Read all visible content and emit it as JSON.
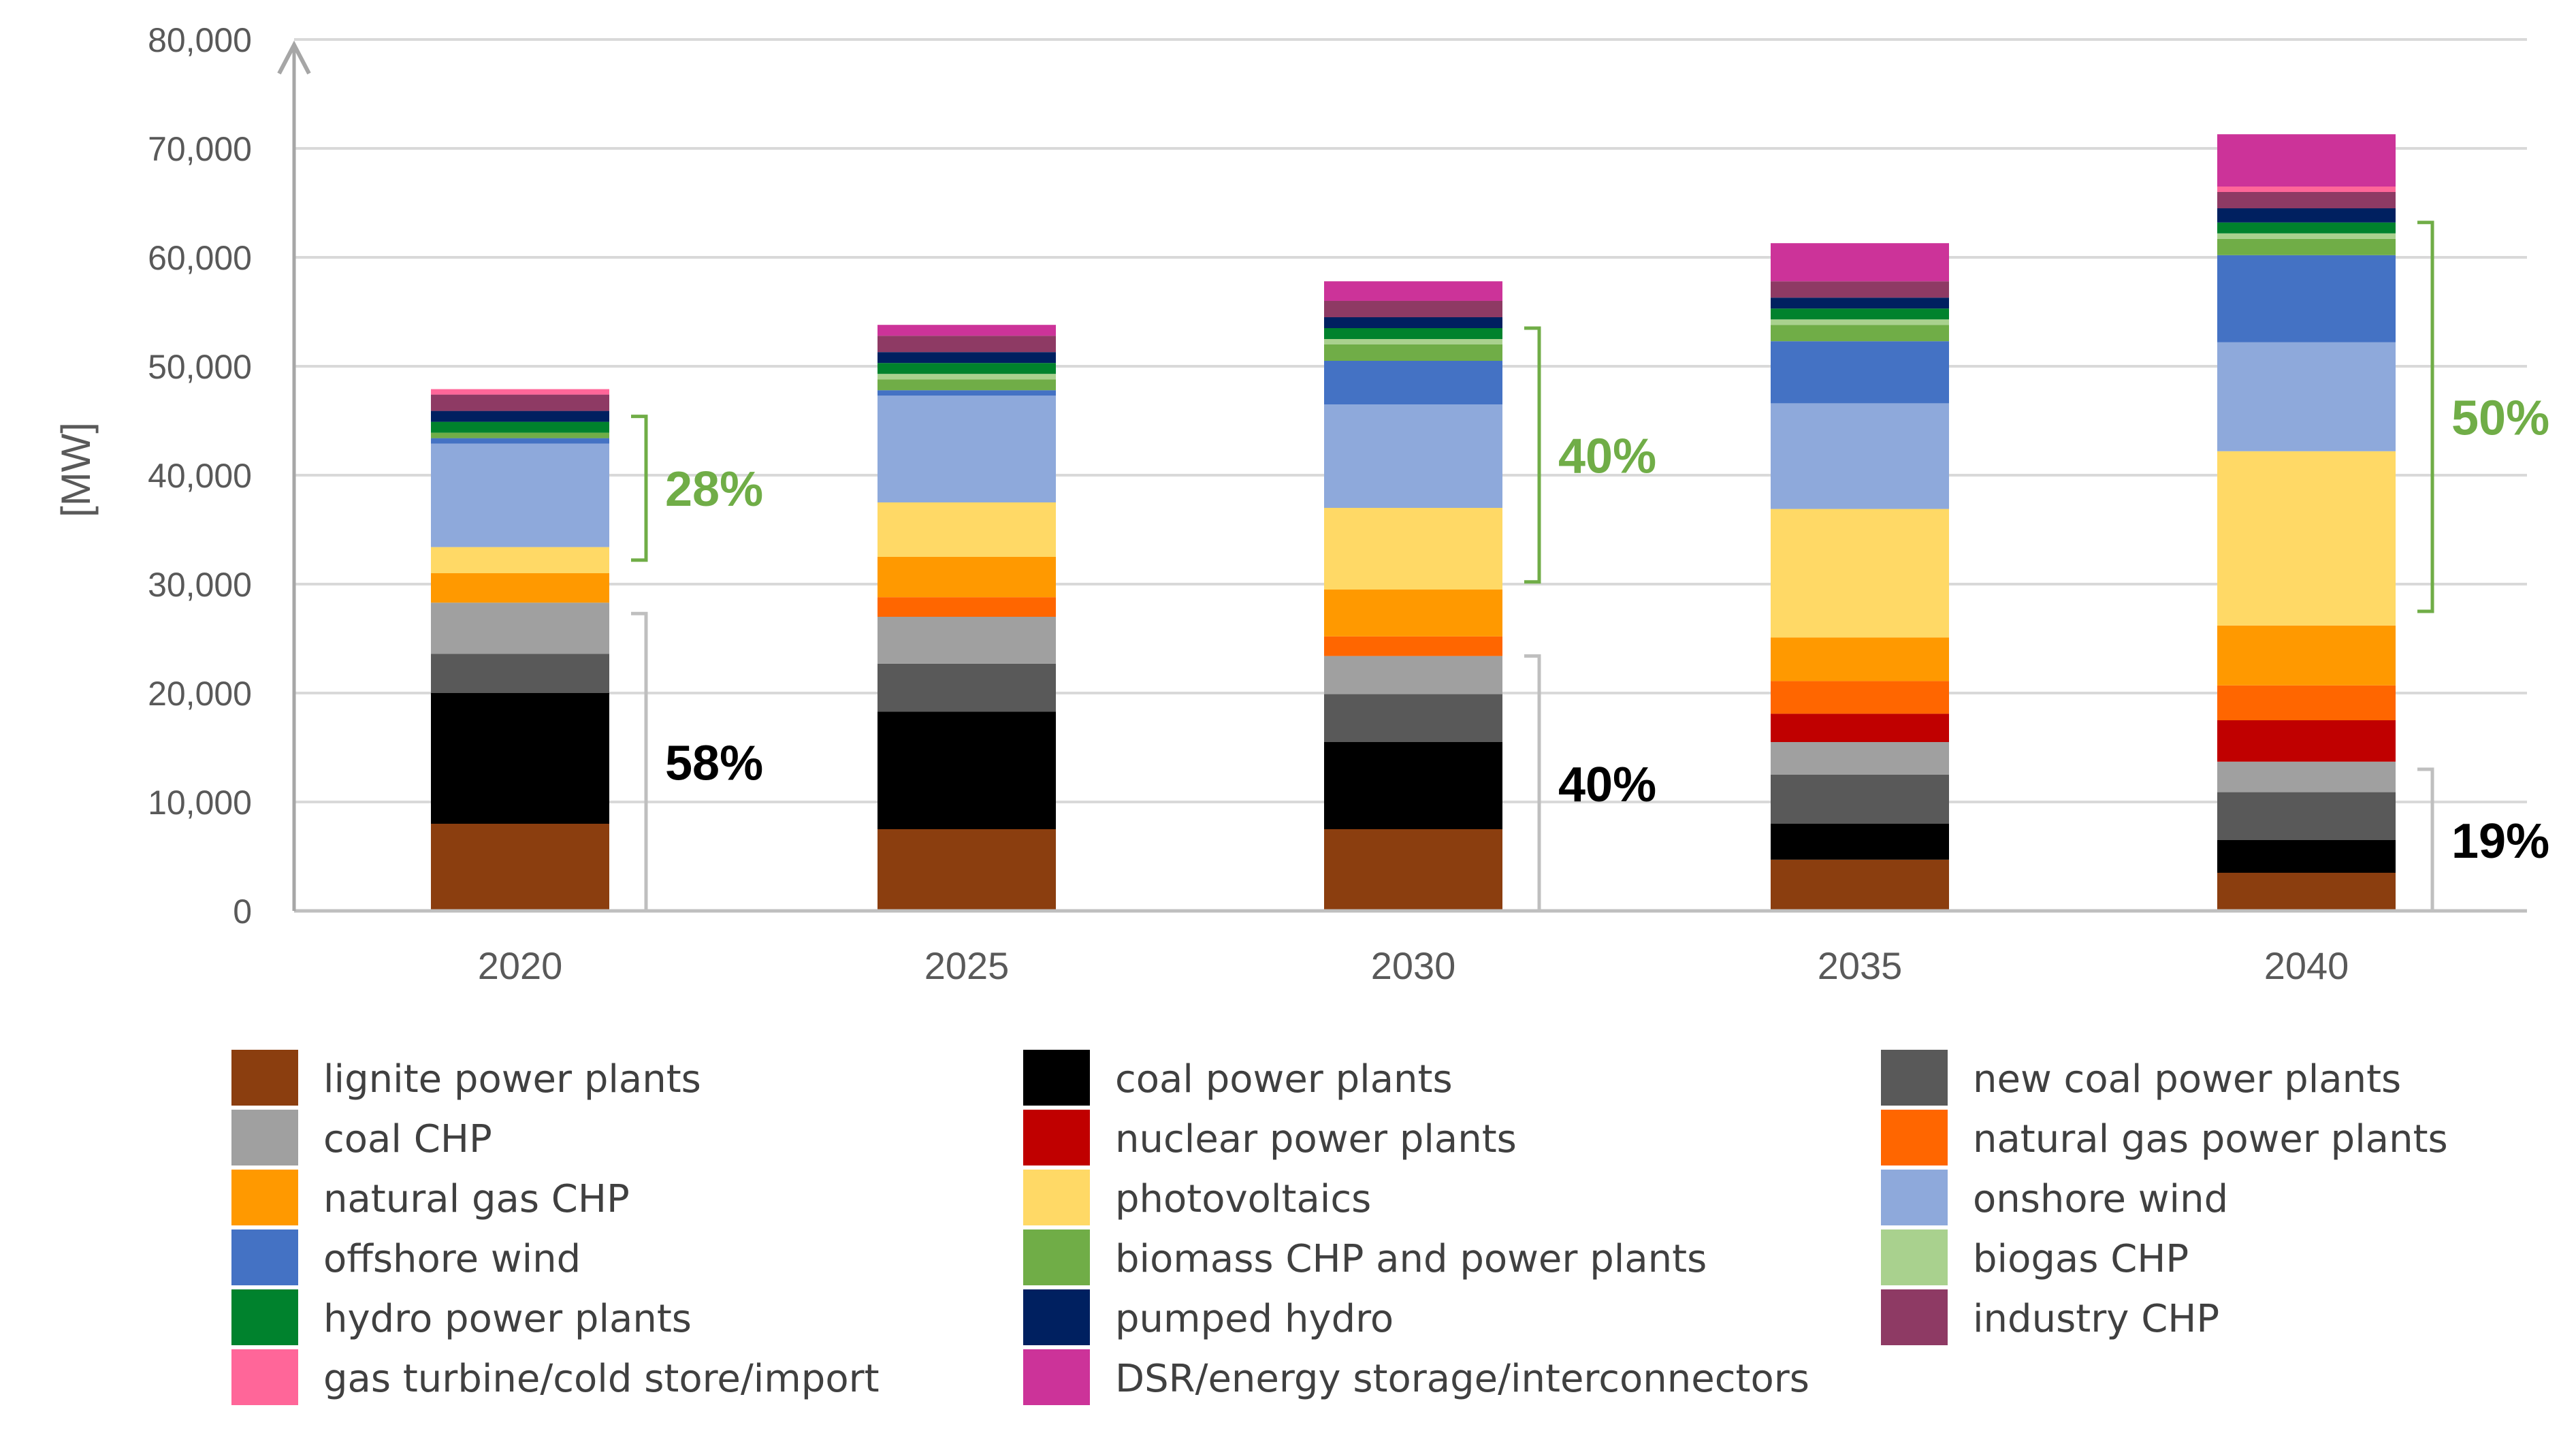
{
  "chart_data": {
    "type": "bar",
    "stacked": true,
    "title": "",
    "xlabel": "",
    "ylabel": "[MW]",
    "ylim": [
      0,
      80000
    ],
    "yticks": [
      {
        "value": 0,
        "label": "0"
      },
      {
        "value": 10000,
        "label": "10,000"
      },
      {
        "value": 20000,
        "label": "20,000"
      },
      {
        "value": 30000,
        "label": "30,000"
      },
      {
        "value": 40000,
        "label": "40,000"
      },
      {
        "value": 50000,
        "label": "50,000"
      },
      {
        "value": 60000,
        "label": "60,000"
      },
      {
        "value": 70000,
        "label": "70,000"
      },
      {
        "value": 80000,
        "label": "80,000"
      }
    ],
    "grid": true,
    "legend_position": "bottom",
    "categories": [
      "2020",
      "2025",
      "2030",
      "2035",
      "2040"
    ],
    "series": [
      {
        "name": "lignite power plants",
        "color": "#8B3E0F",
        "values": [
          8000,
          7500,
          7500,
          4700,
          3500
        ]
      },
      {
        "name": "coal power plants",
        "color": "#000000",
        "values": [
          12000,
          10800,
          8000,
          3300,
          3000
        ]
      },
      {
        "name": "new coal power plants",
        "color": "#595959",
        "values": [
          3600,
          4400,
          4400,
          4500,
          4400
        ]
      },
      {
        "name": "coal CHP",
        "color": "#A0A0A0",
        "values": [
          4700,
          4300,
          3500,
          3000,
          2800
        ]
      },
      {
        "name": "nuclear power plants",
        "color": "#C00000",
        "values": [
          0,
          0,
          0,
          2600,
          3800
        ]
      },
      {
        "name": "natural gas power plants",
        "color": "#FF6600",
        "values": [
          0,
          1800,
          1800,
          3000,
          3200
        ]
      },
      {
        "name": "natural gas CHP",
        "color": "#FF9900",
        "values": [
          2700,
          3700,
          4300,
          4000,
          5500
        ]
      },
      {
        "name": "photovoltaics",
        "color": "#FFD966",
        "values": [
          2400,
          5000,
          7500,
          11800,
          16000
        ]
      },
      {
        "name": "onshore wind",
        "color": "#8EA9DB",
        "values": [
          9500,
          9800,
          9500,
          9700,
          10000
        ]
      },
      {
        "name": "offshore wind",
        "color": "#4472C4",
        "values": [
          500,
          500,
          4000,
          5700,
          8000
        ]
      },
      {
        "name": "biomass CHP and power plants",
        "color": "#70AD47",
        "values": [
          500,
          1000,
          1500,
          1500,
          1500
        ]
      },
      {
        "name": "biogas CHP",
        "color": "#A9D18E",
        "values": [
          0,
          500,
          500,
          500,
          500
        ]
      },
      {
        "name": "hydro power plants",
        "color": "#00822D",
        "values": [
          1000,
          1000,
          1000,
          1000,
          1000
        ]
      },
      {
        "name": "pumped hydro",
        "color": "#002060",
        "values": [
          1000,
          1000,
          1000,
          1000,
          1300
        ]
      },
      {
        "name": "industry CHP",
        "color": "#8E3A64",
        "values": [
          1500,
          1500,
          1500,
          1500,
          1500
        ]
      },
      {
        "name": "gas turbine/cold store/import",
        "color": "#FF6699",
        "values": [
          500,
          0,
          0,
          0,
          500
        ]
      },
      {
        "name": "DSR/energy storage/interconnectors",
        "color": "#CC3399",
        "values": [
          0,
          1000,
          1800,
          3500,
          4800
        ]
      }
    ],
    "annotations": [
      {
        "text": "58%",
        "category": "2020",
        "from": 0,
        "to": 27300,
        "color": "#000000"
      },
      {
        "text": "28%",
        "category": "2020",
        "from": 32200,
        "to": 45400,
        "color": "#70AD47"
      },
      {
        "text": "40%",
        "category": "2030",
        "from": 0,
        "to": 23400,
        "color": "#000000"
      },
      {
        "text": "40%",
        "category": "2030",
        "from": 30200,
        "to": 53500,
        "color": "#70AD47"
      },
      {
        "text": "19%",
        "category": "2040",
        "from": 0,
        "to": 13000,
        "color": "#000000"
      },
      {
        "text": "50%",
        "category": "2040",
        "from": 27500,
        "to": 63200,
        "color": "#70AD47"
      }
    ],
    "legend": [
      {
        "label": "lignite power plants",
        "color": "#8B3E0F"
      },
      {
        "label": "coal power plants",
        "color": "#000000"
      },
      {
        "label": "new coal power plants",
        "color": "#595959"
      },
      {
        "label": "coal CHP",
        "color": "#A0A0A0"
      },
      {
        "label": "nuclear power plants",
        "color": "#C00000"
      },
      {
        "label": "natural gas power plants",
        "color": "#FF6600"
      },
      {
        "label": "natural gas CHP",
        "color": "#FF9900"
      },
      {
        "label": "photovoltaics",
        "color": "#FFD966"
      },
      {
        "label": "onshore wind",
        "color": "#8EA9DB"
      },
      {
        "label": "offshore wind",
        "color": "#4472C4"
      },
      {
        "label": "biomass CHP and power plants",
        "color": "#70AD47"
      },
      {
        "label": "biogas CHP",
        "color": "#A9D18E"
      },
      {
        "label": "hydro power plants",
        "color": "#00822D"
      },
      {
        "label": "pumped hydro",
        "color": "#002060"
      },
      {
        "label": "industry CHP",
        "color": "#8E3A64"
      },
      {
        "label": "gas turbine/cold store/import",
        "color": "#FF6699"
      },
      {
        "label": "DSR/energy storage/interconnectors",
        "color": "#CC3399"
      }
    ]
  }
}
